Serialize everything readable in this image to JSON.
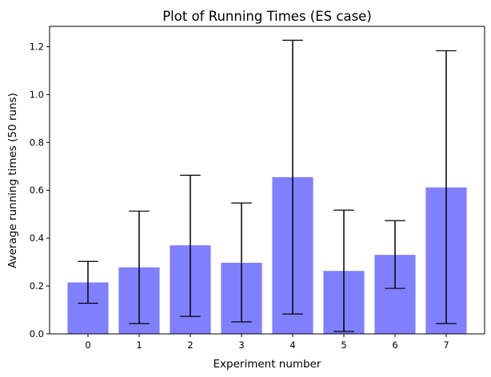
{
  "chart_data": {
    "type": "bar",
    "title": "Plot of Running Times (ES case)",
    "xlabel": "Experiment number",
    "ylabel": "Average running times (50 runs)",
    "categories": [
      "0",
      "1",
      "2",
      "3",
      "4",
      "5",
      "6",
      "7"
    ],
    "values": [
      0.215,
      0.278,
      0.37,
      0.297,
      0.655,
      0.263,
      0.33,
      0.612
    ],
    "error_low": [
      0.128,
      0.043,
      0.073,
      0.05,
      0.083,
      0.01,
      0.19,
      0.043
    ],
    "error_high": [
      0.303,
      0.513,
      0.663,
      0.547,
      1.227,
      0.517,
      0.473,
      1.183
    ],
    "ylim": [
      0,
      1.285
    ],
    "yticks": [
      0.0,
      0.2,
      0.4,
      0.6,
      0.8,
      1.0,
      1.2
    ],
    "ytick_labels": [
      "0.0",
      "0.2",
      "0.4",
      "0.6",
      "0.8",
      "1.0",
      "1.2"
    ],
    "grid": false,
    "bar_color": "#8080ff",
    "error_bar_color": "#000000"
  }
}
